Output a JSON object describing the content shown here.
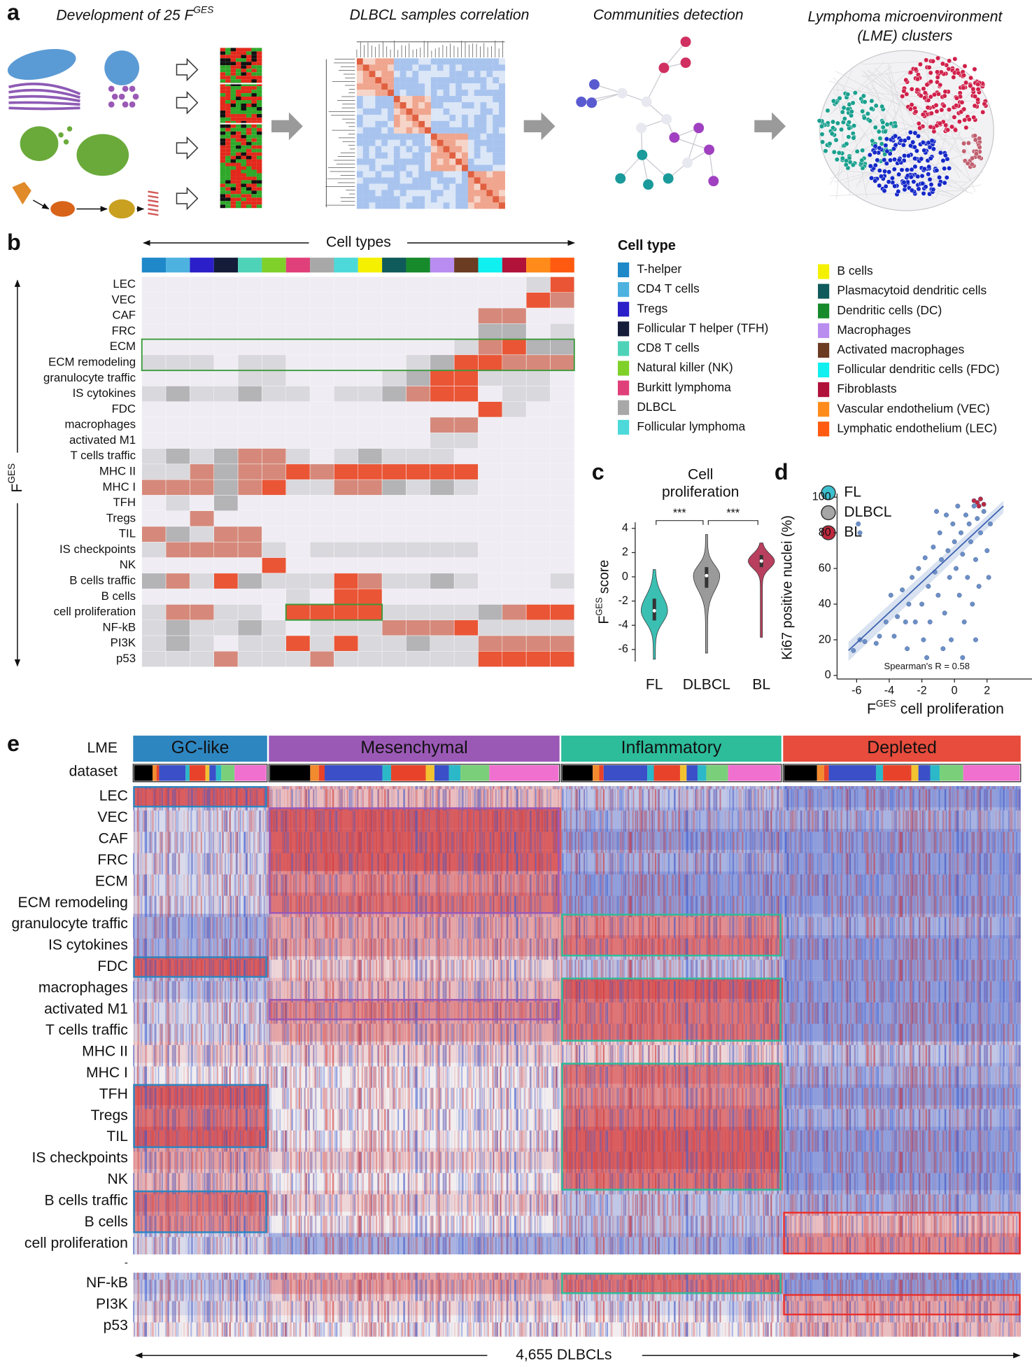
{
  "panel_a": {
    "letter": "a",
    "step1_title": "Development of 25 F",
    "step1_title_sup": "GES",
    "step2_title": "DLBCL samples correlation",
    "step3_title": "Communities detection",
    "step4_title_lines": [
      "Lymphoma microenvironment",
      "(LME) clusters"
    ]
  },
  "panel_b": {
    "letter": "b",
    "legend_title": "Cell type",
    "chart_data": {
      "type": "heatmap",
      "x_axis_label": "Cell types",
      "y_axis_label": "F",
      "y_axis_label_sup": "GES",
      "columns": [
        "T-helper",
        "CD4 T cells",
        "Tregs",
        "Follicular T helper (TFH)",
        "CD8 T cells",
        "Natural killer (NK)",
        "Burkitt lymphoma",
        "DLBCL",
        "Follicular lymphoma",
        "B cells",
        "Plasmacytoid dendritic cells",
        "Dendritic cells (DC)",
        "Macrophages",
        "Activated macrophages",
        "Follicular dendritic cells (FDC)",
        "Fibroblasts",
        "Vascular endothelium (VEC)",
        "Lymphatic endothelium (LEC)"
      ],
      "column_colors": [
        "#1f88c9",
        "#4db2e0",
        "#2a1fc8",
        "#141c3a",
        "#4fd3b8",
        "#7fd12a",
        "#e0407a",
        "#a8a8a8",
        "#4dd9d9",
        "#f5f000",
        "#0f5a5a",
        "#178a2c",
        "#b98cf0",
        "#6b3b22",
        "#10f0f0",
        "#b0123a",
        "#ff8c1a",
        "#ff5a10"
      ],
      "rows": [
        "LEC",
        "VEC",
        "CAF",
        "FRC",
        "ECM",
        "ECM remodeling",
        "granulocyte traffic",
        "IS cytokines",
        "FDC",
        "macrophages",
        "activated M1",
        "T cells traffic",
        "MHC II",
        "MHC I",
        "TFH",
        "Tregs",
        "TIL",
        "IS checkpoints",
        "NK",
        "B cells traffic",
        "B cells",
        "cell proliferation",
        "NF-kB",
        "PI3K",
        "p53"
      ],
      "level_colors": [
        "#efedf3",
        "#d9d8dc",
        "#b4b3b6",
        "#d6897a",
        "#ea5535"
      ],
      "values": [
        [
          0,
          0,
          0,
          0,
          0,
          0,
          0,
          0,
          0,
          0,
          0,
          0,
          0,
          0,
          0,
          0,
          1,
          4
        ],
        [
          0,
          0,
          0,
          0,
          0,
          0,
          0,
          0,
          0,
          0,
          0,
          0,
          0,
          0,
          0,
          0,
          4,
          3
        ],
        [
          0,
          0,
          0,
          0,
          0,
          0,
          0,
          0,
          0,
          0,
          0,
          0,
          0,
          0,
          3,
          3,
          0,
          0
        ],
        [
          0,
          0,
          0,
          0,
          0,
          0,
          0,
          0,
          0,
          0,
          0,
          0,
          0,
          0,
          2,
          2,
          0,
          1
        ],
        [
          0,
          0,
          0,
          0,
          0,
          0,
          0,
          0,
          0,
          0,
          0,
          0,
          0,
          1,
          3,
          4,
          2,
          2
        ],
        [
          1,
          1,
          1,
          0,
          1,
          1,
          0,
          0,
          0,
          0,
          0,
          1,
          2,
          4,
          4,
          3,
          3,
          3
        ],
        [
          0,
          0,
          0,
          0,
          1,
          1,
          0,
          0,
          0,
          0,
          1,
          2,
          4,
          4,
          1,
          1,
          1,
          0
        ],
        [
          1,
          2,
          1,
          1,
          2,
          1,
          1,
          0,
          1,
          1,
          2,
          3,
          4,
          4,
          0,
          1,
          1,
          0
        ],
        [
          0,
          0,
          0,
          0,
          0,
          0,
          0,
          0,
          0,
          0,
          0,
          0,
          0,
          0,
          4,
          1,
          0,
          0
        ],
        [
          0,
          0,
          0,
          0,
          0,
          0,
          0,
          0,
          0,
          0,
          0,
          0,
          3,
          3,
          0,
          0,
          0,
          0
        ],
        [
          0,
          0,
          0,
          0,
          0,
          0,
          0,
          0,
          0,
          0,
          0,
          0,
          1,
          1,
          0,
          0,
          0,
          0
        ],
        [
          1,
          2,
          1,
          2,
          3,
          3,
          1,
          0,
          1,
          2,
          1,
          1,
          1,
          0,
          0,
          0,
          0,
          0
        ],
        [
          1,
          1,
          3,
          2,
          3,
          3,
          4,
          3,
          4,
          4,
          4,
          4,
          4,
          4,
          0,
          0,
          0,
          0
        ],
        [
          3,
          3,
          3,
          2,
          3,
          4,
          1,
          1,
          3,
          3,
          2,
          1,
          2,
          1,
          0,
          0,
          0,
          0
        ],
        [
          0,
          1,
          0,
          2,
          0,
          0,
          0,
          0,
          0,
          0,
          0,
          0,
          0,
          0,
          0,
          0,
          0,
          0
        ],
        [
          0,
          0,
          3,
          0,
          0,
          0,
          0,
          0,
          0,
          0,
          0,
          0,
          0,
          0,
          0,
          0,
          0,
          0
        ],
        [
          3,
          2,
          1,
          3,
          3,
          0,
          0,
          0,
          0,
          0,
          0,
          0,
          0,
          0,
          0,
          0,
          0,
          0
        ],
        [
          1,
          3,
          3,
          3,
          3,
          1,
          0,
          1,
          1,
          1,
          1,
          1,
          1,
          1,
          0,
          0,
          0,
          0
        ],
        [
          0,
          0,
          0,
          0,
          0,
          4,
          0,
          0,
          0,
          0,
          0,
          0,
          0,
          0,
          0,
          0,
          0,
          0
        ],
        [
          2,
          3,
          1,
          4,
          2,
          1,
          1,
          1,
          4,
          3,
          1,
          1,
          2,
          1,
          0,
          0,
          0,
          1
        ],
        [
          0,
          0,
          0,
          0,
          0,
          0,
          1,
          0,
          4,
          4,
          0,
          0,
          0,
          0,
          0,
          0,
          0,
          0
        ],
        [
          1,
          3,
          3,
          1,
          1,
          0,
          4,
          4,
          4,
          4,
          1,
          1,
          1,
          1,
          2,
          3,
          4,
          4
        ],
        [
          1,
          2,
          1,
          1,
          2,
          1,
          0,
          1,
          1,
          1,
          3,
          3,
          3,
          4,
          1,
          1,
          1,
          1
        ],
        [
          1,
          2,
          1,
          0,
          1,
          1,
          4,
          1,
          4,
          1,
          1,
          2,
          1,
          1,
          3,
          3,
          3,
          3
        ],
        [
          1,
          1,
          1,
          3,
          1,
          1,
          1,
          3,
          1,
          1,
          1,
          1,
          1,
          1,
          4,
          4,
          4,
          4
        ]
      ]
    }
  },
  "panel_c": {
    "letter": "c",
    "chart_data": {
      "type": "violin",
      "title_lines": [
        "Cell",
        "proliferation"
      ],
      "y_axis_label": "F",
      "y_axis_label_sup": "GES",
      "y_axis_label_rest": "score",
      "categories": [
        "FL",
        "DLBCL",
        "BL"
      ],
      "colors": [
        "#3bbfb3",
        "#9a9a9a",
        "#b8405e"
      ],
      "min": [
        -6.8,
        -6.3,
        -5
      ],
      "q1": [
        -3.6,
        -0.9,
        0.8
      ],
      "median": [
        -2.8,
        0.1,
        1.3
      ],
      "q3": [
        -1.8,
        0.8,
        1.8
      ],
      "max": [
        0.6,
        3.5,
        2.8
      ],
      "ylim": [
        -7,
        4.5
      ],
      "yticks": [
        -6,
        -4,
        -2,
        0,
        2,
        4
      ],
      "annotations": [
        "***",
        "***"
      ]
    }
  },
  "panel_d": {
    "letter": "d",
    "chart_data": {
      "type": "scatter",
      "legend": [
        {
          "name": "FL",
          "color": "#3cc0cf"
        },
        {
          "name": "DLBCL",
          "color": "#a6a6a6"
        },
        {
          "name": "BL",
          "color": "#c0273d"
        }
      ],
      "series": [
        {
          "color": "#6d8fc6",
          "x": [
            -6.2,
            -5.8,
            -5.5,
            -4.6,
            -4.2,
            -3.9,
            -3.5,
            -3.2,
            -3.0,
            -2.8,
            -2.6,
            -2.4,
            -2.2,
            -2.0,
            -1.9,
            -1.8,
            -1.6,
            -1.5,
            -1.3,
            -1.2,
            -1.0,
            -0.9,
            -0.8,
            -0.6,
            -0.5,
            -0.4,
            -0.3,
            -0.2,
            -0.1,
            0,
            0.1,
            0.2,
            0.3,
            0.4,
            0.5,
            0.6,
            0.7,
            0.8,
            0.9,
            1.0,
            1.1,
            1.2,
            1.3,
            1.4,
            1.5,
            1.6,
            1.8,
            2.0,
            2.2,
            -5.9,
            -5.8,
            -4.8,
            -3.7,
            -2.9,
            -1.7,
            -0.7,
            0.5,
            1.3,
            2.1,
            -1.1
          ],
          "y": [
            14,
            20,
            19,
            22,
            30,
            45,
            33,
            48,
            30,
            40,
            55,
            30,
            60,
            40,
            20,
            66,
            50,
            30,
            72,
            58,
            45,
            80,
            65,
            35,
            90,
            70,
            55,
            20,
            85,
            75,
            60,
            95,
            45,
            80,
            68,
            30,
            90,
            55,
            85,
            75,
            40,
            95,
            65,
            88,
            50,
            80,
            92,
            70,
            85,
            85,
            80,
            18,
            22,
            15,
            10,
            15,
            10,
            20,
            55,
            92
          ]
        },
        {
          "color": "#c0273d",
          "x": [
            1.2,
            1.4,
            1.6,
            1.8,
            1.5
          ],
          "y": [
            98,
            97,
            99,
            96,
            95
          ]
        }
      ],
      "fit": {
        "x": [
          -6.5,
          3
        ],
        "y": [
          14,
          95
        ]
      },
      "annotation": "Spearman's R = 0.58",
      "y_axis_label": "Ki67 positive nuclei (%)",
      "x_axis_label": "F",
      "x_axis_label_sup": "GES",
      "x_axis_label_rest": "cell proliferation",
      "xlim": [
        -7.2,
        3.9
      ],
      "xticks": [
        -6,
        -4,
        -2,
        0,
        2
      ],
      "ylim": [
        -2,
        102
      ],
      "yticks": [
        0,
        20,
        40,
        60,
        80,
        100
      ]
    }
  },
  "panel_e": {
    "letter": "e",
    "row_header_lme": "LME",
    "row_header_dataset": "dataset",
    "chart_data": {
      "type": "heatmap",
      "clusters": [
        {
          "name": "GC-like",
          "color": "#2e86c1"
        },
        {
          "name": "Mesenchymal",
          "color": "#9b59b6"
        },
        {
          "name": "Inflammatory",
          "color": "#2dbd9b"
        },
        {
          "name": "Depleted",
          "color": "#e74c3c"
        }
      ],
      "rows": [
        "LEC",
        "VEC",
        "CAF",
        "FRC",
        "ECM",
        "ECM remodeling",
        "granulocyte traffic",
        "IS cytokines",
        "FDC",
        "macrophages",
        "activated M1",
        "T cells traffic",
        "MHC II",
        "MHC I",
        "TFH",
        "Tregs",
        "TIL",
        "IS checkpoints",
        "NK",
        "B cells traffic",
        "B cells",
        "cell proliferation",
        "NF-kB",
        "PI3K",
        "p53"
      ],
      "gap_label": "-",
      "values": [
        [
          0.6,
          0.2,
          -0.2,
          -0.4
        ],
        [
          -0.1,
          0.6,
          -0.3,
          -0.3
        ],
        [
          -0.1,
          0.6,
          -0.4,
          -0.4
        ],
        [
          -0.1,
          0.6,
          -0.3,
          -0.4
        ],
        [
          -0.1,
          0.4,
          -0.4,
          -0.4
        ],
        [
          -0.1,
          0.5,
          -0.4,
          -0.4
        ],
        [
          -0.3,
          0.3,
          0.4,
          -0.3
        ],
        [
          -0.3,
          0.3,
          0.5,
          -0.4
        ],
        [
          0.6,
          0.1,
          -0.2,
          -0.4
        ],
        [
          -0.2,
          0.2,
          0.6,
          -0.4
        ],
        [
          -0.1,
          0.4,
          0.5,
          -0.4
        ],
        [
          -0.1,
          0.3,
          0.5,
          -0.4
        ],
        [
          0.1,
          0.1,
          0.1,
          -0.2
        ],
        [
          0.0,
          0.0,
          0.5,
          -0.3
        ],
        [
          0.6,
          0.0,
          0.4,
          -0.4
        ],
        [
          0.5,
          0.0,
          0.5,
          -0.3
        ],
        [
          0.6,
          0.0,
          0.6,
          -0.4
        ],
        [
          0.3,
          0.1,
          0.6,
          -0.4
        ],
        [
          0.2,
          0.0,
          0.5,
          -0.4
        ],
        [
          0.5,
          0.1,
          -0.2,
          -0.3
        ],
        [
          0.4,
          0.0,
          -0.2,
          0.2
        ],
        [
          -0.1,
          -0.3,
          -0.3,
          0.4
        ],
        [
          -0.2,
          0.3,
          0.5,
          -0.4
        ],
        [
          -0.1,
          0.1,
          -0.1,
          0.3
        ],
        [
          0.0,
          0.0,
          0.0,
          0.2
        ]
      ],
      "x_axis_label": "4,655 DLBCLs"
    }
  }
}
